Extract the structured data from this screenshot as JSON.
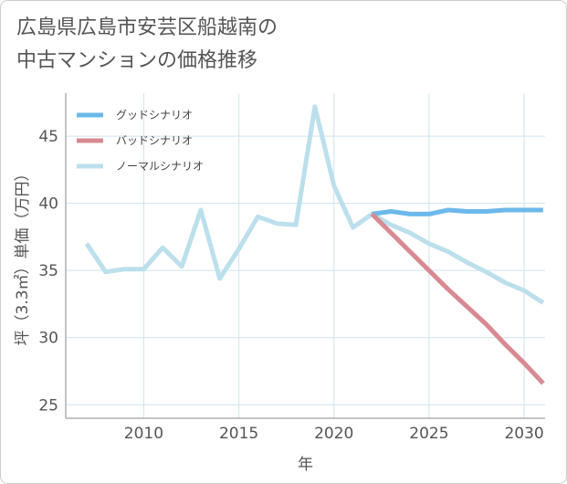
{
  "title_line1": "広島県広島市安芸区船越南の",
  "title_line2": "中古マンションの価格推移",
  "chart_data": {
    "type": "line",
    "title": "広島県広島市安芸区船越南の中古マンションの価格推移",
    "xlabel": "年",
    "ylabel": "坪（3.3㎡）単価（万円）",
    "xlim": [
      2005.9,
      2031.1
    ],
    "ylim": [
      24,
      48.2
    ],
    "xticks": [
      2010,
      2015,
      2020,
      2025,
      2030
    ],
    "yticks": [
      25,
      30,
      35,
      40,
      45
    ],
    "grid": true,
    "legend_position": "top-left",
    "series": [
      {
        "name": "グッドシナリオ",
        "color": "#6cb8ea",
        "x": [
          2022,
          2023,
          2024,
          2025,
          2026,
          2027,
          2028,
          2029,
          2030,
          2031
        ],
        "y": [
          39.2,
          39.4,
          39.2,
          39.2,
          39.5,
          39.4,
          39.4,
          39.5,
          39.5,
          39.5
        ]
      },
      {
        "name": "バッドシナリオ",
        "color": "#d88a92",
        "x": [
          2022,
          2023,
          2024,
          2025,
          2026,
          2027,
          2028,
          2029,
          2030,
          2031
        ],
        "y": [
          39.2,
          37.8,
          36.4,
          35.0,
          33.6,
          32.3,
          31.0,
          29.5,
          28.1,
          26.6
        ]
      },
      {
        "name": "ノーマルシナリオ",
        "color": "#bcdfec",
        "x": [
          2007,
          2008,
          2009,
          2010,
          2011,
          2012,
          2013,
          2014,
          2015,
          2016,
          2017,
          2018,
          2019,
          2020,
          2021,
          2022,
          2023,
          2024,
          2025,
          2026,
          2027,
          2028,
          2029,
          2030,
          2031
        ],
        "y": [
          37.0,
          34.9,
          35.1,
          35.1,
          36.7,
          35.3,
          39.5,
          34.4,
          36.6,
          39.0,
          38.5,
          38.4,
          47.2,
          41.3,
          38.2,
          39.2,
          38.4,
          37.8,
          37.0,
          36.4,
          35.6,
          34.9,
          34.1,
          33.5,
          32.6
        ]
      }
    ]
  }
}
